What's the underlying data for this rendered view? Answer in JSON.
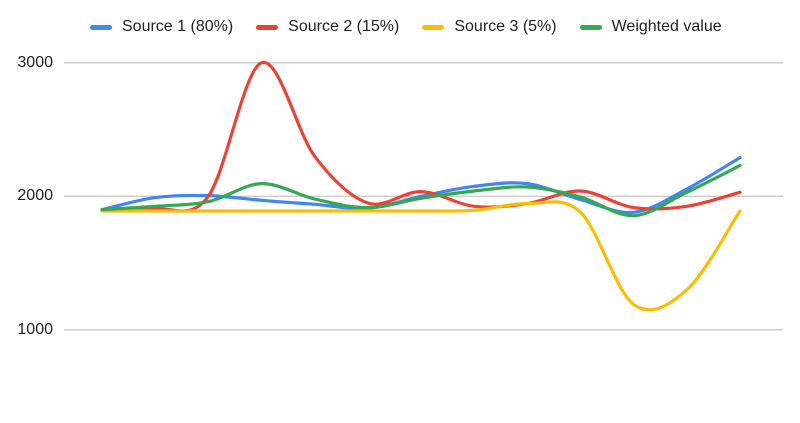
{
  "chart_data": {
    "type": "line",
    "smooth": true,
    "title": "",
    "xlabel": "",
    "ylabel": "",
    "legend_position": "top",
    "grid": true,
    "x_axis_labels_visible": false,
    "background": "#ffffff",
    "gridline_color": "#cccccc",
    "axis_label_color": "#202124",
    "yticks": [
      1000,
      2000,
      3000
    ],
    "ylim": [
      1000,
      3000
    ],
    "x": [
      1,
      2,
      3,
      4,
      5,
      6,
      7,
      8,
      9,
      10,
      11,
      12,
      13
    ],
    "series": [
      {
        "name": "Source 1 (80%)",
        "color": "#4285F4",
        "values": [
          1900,
          1990,
          2005,
          1970,
          1940,
          1910,
          2000,
          2075,
          2095,
          1975,
          1880,
          2055,
          2290
        ]
      },
      {
        "name": "Source 2 (15%)",
        "color": "#EA4335",
        "values": [
          1900,
          1905,
          2000,
          3000,
          2300,
          1950,
          2035,
          1925,
          1945,
          2040,
          1915,
          1925,
          2030
        ]
      },
      {
        "name": "Source 3 (5%)",
        "color": "#FBBC04",
        "values": [
          1890,
          1890,
          1890,
          1890,
          1890,
          1890,
          1890,
          1895,
          1945,
          1880,
          1190,
          1300,
          1890
        ]
      },
      {
        "name": "Weighted value",
        "color": "#34A853",
        "values": [
          1900,
          1925,
          1960,
          2095,
          1980,
          1915,
          1985,
          2040,
          2070,
          1995,
          1855,
          2030,
          2230
        ]
      }
    ]
  }
}
